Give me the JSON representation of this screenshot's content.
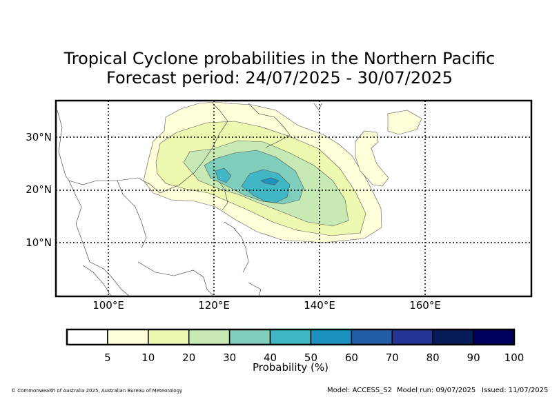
{
  "title_line1": "Tropical Cyclone probabilities in the Northern Pacific",
  "title_line2": "Forecast period: 24/07/2025 - 30/07/2025",
  "map": {
    "lat_labels": [
      "30°N",
      "20°N",
      "10°N"
    ],
    "lon_labels": [
      "100°E",
      "120°E",
      "140°E",
      "160°E"
    ],
    "gridlines": true
  },
  "colorbar": {
    "label": "Probability (%)",
    "ticks": [
      "5",
      "10",
      "20",
      "30",
      "40",
      "50",
      "60",
      "70",
      "80",
      "90",
      "100"
    ],
    "colors": [
      "#ffffff",
      "#ffffd9",
      "#edf8b1",
      "#c7e9b4",
      "#7fcdbb",
      "#41b6c4",
      "#1d91c0",
      "#225ea8",
      "#253494",
      "#081d58",
      "#000060"
    ]
  },
  "footer": {
    "copyright": "© Commonwealth of Australia 2025, Australian Bureau of Meteorology",
    "model": "Model: ACCESS_S2",
    "model_run": "Model run: 09/07/2025",
    "issued": "Issued: 11/07/2025"
  }
}
